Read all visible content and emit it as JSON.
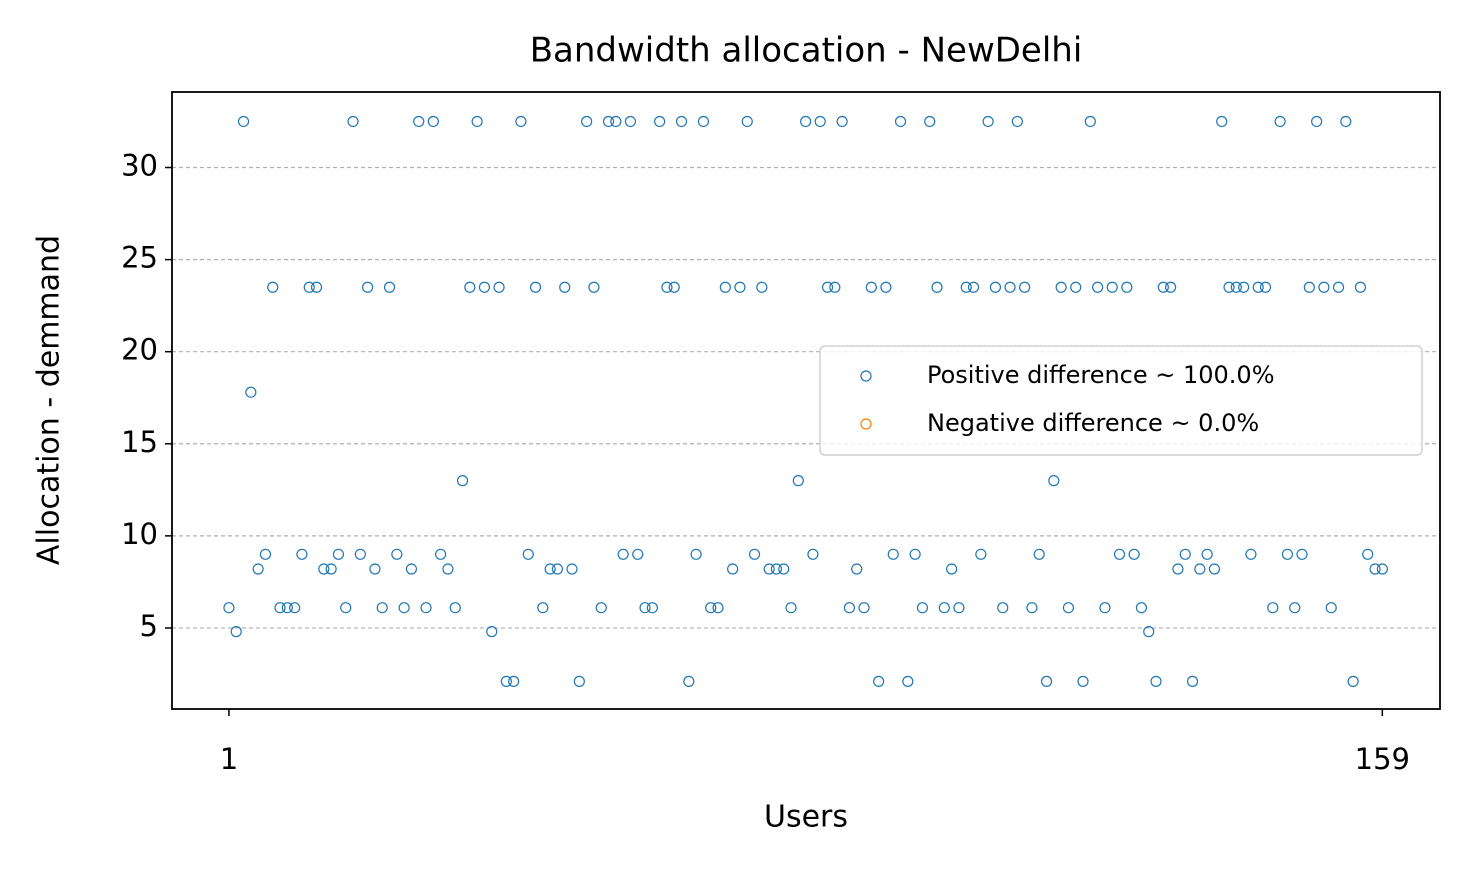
{
  "chart_data": {
    "type": "scatter",
    "title": "Bandwidth allocation - NewDelhi",
    "x_label": "Users",
    "y_label": "Allocation - demmand",
    "xlim": [
      -6.8,
      166.9
    ],
    "ylim": [
      0.6,
      34.1
    ],
    "xticks": [
      1,
      159
    ],
    "yticks": [
      5,
      10,
      15,
      20,
      25,
      30
    ],
    "grid": "y",
    "legend": "center right",
    "series": [
      {
        "name": "Positive difference ~ 100.0%",
        "color": "#1f77b4",
        "x": [
          1,
          2,
          3,
          4,
          5,
          6,
          7,
          8,
          9,
          10,
          11,
          12,
          13,
          14,
          15,
          16,
          17,
          18,
          19,
          20,
          21,
          22,
          23,
          24,
          25,
          26,
          27,
          28,
          29,
          30,
          31,
          32,
          33,
          34,
          35,
          36,
          37,
          38,
          39,
          40,
          41,
          42,
          43,
          44,
          45,
          46,
          47,
          48,
          49,
          50,
          51,
          52,
          53,
          54,
          55,
          56,
          57,
          58,
          59,
          60,
          61,
          62,
          63,
          64,
          65,
          66,
          67,
          68,
          69,
          70,
          71,
          72,
          73,
          74,
          75,
          76,
          77,
          78,
          79,
          80,
          81,
          82,
          83,
          84,
          85,
          86,
          87,
          88,
          89,
          90,
          91,
          92,
          93,
          94,
          95,
          96,
          97,
          98,
          99,
          100,
          101,
          102,
          103,
          104,
          105,
          106,
          107,
          108,
          109,
          110,
          111,
          112,
          113,
          114,
          115,
          116,
          117,
          118,
          119,
          120,
          121,
          122,
          123,
          124,
          125,
          126,
          127,
          128,
          129,
          130,
          131,
          132,
          133,
          134,
          135,
          136,
          137,
          138,
          139,
          140,
          141,
          142,
          143,
          144,
          145,
          146,
          147,
          148,
          149,
          150,
          151,
          152,
          153,
          154,
          155,
          156,
          157,
          158,
          159
        ],
        "values": [
          6.1,
          4.8,
          32.5,
          17.8,
          8.2,
          9.0,
          23.5,
          6.1,
          6.1,
          6.1,
          9.0,
          23.5,
          23.5,
          8.2,
          8.2,
          9.0,
          6.1,
          32.5,
          9.0,
          23.5,
          8.2,
          6.1,
          23.5,
          9.0,
          6.1,
          8.2,
          32.5,
          6.1,
          32.5,
          9.0,
          8.2,
          6.1,
          13.0,
          23.5,
          32.5,
          23.5,
          4.8,
          23.5,
          2.1,
          2.1,
          32.5,
          9.0,
          23.5,
          6.1,
          8.2,
          8.2,
          23.5,
          8.2,
          2.1,
          32.5,
          23.5,
          6.1,
          32.5,
          32.5,
          9.0,
          32.5,
          9.0,
          6.1,
          6.1,
          32.5,
          23.5,
          23.5,
          32.5,
          2.1,
          9.0,
          32.5,
          6.1,
          6.1,
          23.5,
          8.2,
          23.5,
          32.5,
          9.0,
          23.5,
          8.2,
          8.2,
          8.2,
          6.1,
          13.0,
          32.5,
          9.0,
          32.5,
          23.5,
          23.5,
          32.5,
          6.1,
          8.2,
          6.1,
          23.5,
          2.1,
          23.5,
          9.0,
          32.5,
          2.1,
          9.0,
          6.1,
          32.5,
          23.5,
          6.1,
          8.2,
          6.1,
          23.5,
          23.5,
          9.0,
          32.5,
          23.5,
          6.1,
          23.5,
          32.5,
          23.5,
          6.1,
          9.0,
          2.1,
          13.0,
          23.5,
          6.1,
          23.5,
          2.1,
          32.5,
          23.5,
          6.1,
          23.5,
          9.0,
          23.5,
          9.0,
          6.1,
          4.8,
          2.1,
          23.5,
          23.5,
          8.2,
          9.0,
          2.1,
          8.2,
          9.0,
          8.2,
          32.5,
          23.5,
          23.5,
          23.5,
          9.0,
          23.5,
          23.5,
          6.1,
          32.5,
          9.0,
          6.1,
          9.0,
          23.5,
          32.5,
          23.5,
          6.1,
          23.5,
          32.5,
          2.1,
          23.5,
          9.0,
          8.2,
          8.2
        ]
      },
      {
        "name": "Negative difference ~ 0.0%",
        "color": "#ff7f0e",
        "x": [],
        "values": []
      }
    ]
  }
}
